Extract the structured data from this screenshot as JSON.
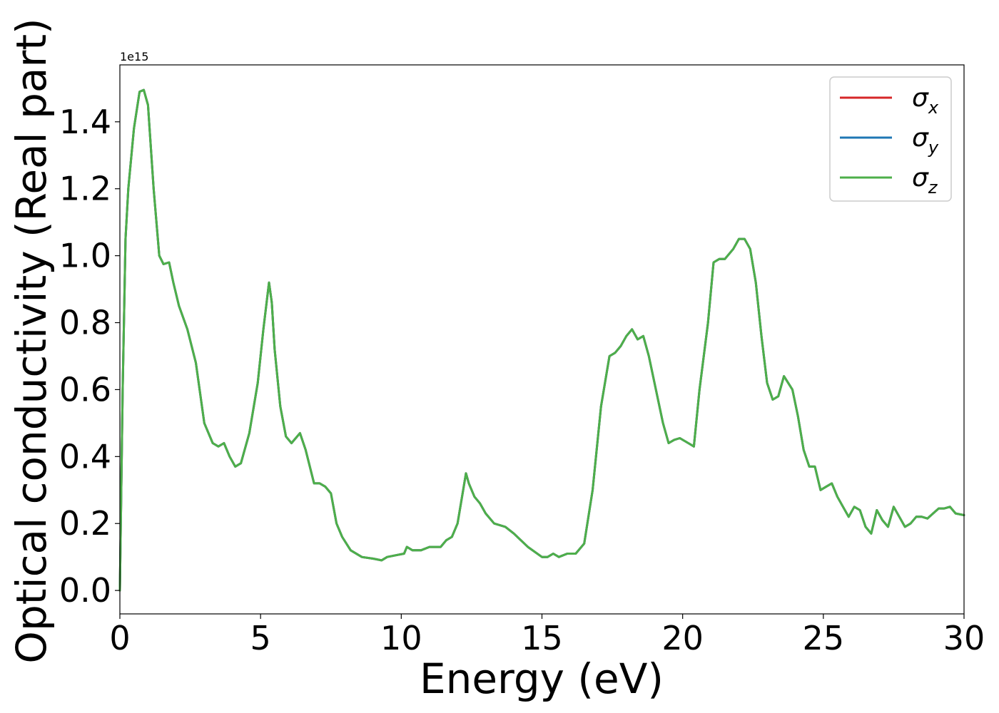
{
  "chart_data": {
    "type": "line",
    "xlabel": "Energy (eV)",
    "ylabel": "Optical conductivity (Real part)",
    "y_offset_text": "1e15",
    "xlim": [
      0,
      30
    ],
    "ylim": [
      -0.07,
      1.57
    ],
    "x_ticks": [
      0,
      5,
      10,
      15,
      20,
      25,
      30
    ],
    "y_ticks": [
      0.0,
      0.2,
      0.4,
      0.6,
      0.8,
      1.0,
      1.2,
      1.4
    ],
    "grid": false,
    "legend_position": "top-right",
    "x": [
      0,
      0.1,
      0.2,
      0.3,
      0.5,
      0.7,
      0.85,
      1.0,
      1.2,
      1.4,
      1.55,
      1.75,
      1.9,
      2.1,
      2.4,
      2.7,
      3.0,
      3.3,
      3.5,
      3.7,
      3.9,
      4.1,
      4.3,
      4.6,
      4.9,
      5.1,
      5.3,
      5.4,
      5.5,
      5.7,
      5.9,
      6.1,
      6.4,
      6.6,
      6.9,
      7.1,
      7.3,
      7.5,
      7.7,
      7.9,
      8.2,
      8.6,
      9.0,
      9.3,
      9.5,
      9.8,
      10.1,
      10.2,
      10.4,
      10.7,
      11.0,
      11.4,
      11.6,
      11.8,
      12.0,
      12.2,
      12.3,
      12.4,
      12.6,
      12.8,
      13.0,
      13.3,
      13.7,
      14.0,
      14.5,
      15.0,
      15.2,
      15.4,
      15.6,
      15.9,
      16.2,
      16.5,
      16.8,
      17.1,
      17.4,
      17.6,
      17.8,
      18.0,
      18.2,
      18.4,
      18.6,
      18.8,
      19.0,
      19.3,
      19.5,
      19.7,
      19.9,
      20.2,
      20.4,
      20.6,
      20.9,
      21.1,
      21.3,
      21.5,
      21.8,
      22.0,
      22.2,
      22.4,
      22.6,
      22.8,
      23.0,
      23.2,
      23.4,
      23.6,
      23.9,
      24.1,
      24.3,
      24.5,
      24.7,
      24.9,
      25.1,
      25.3,
      25.5,
      25.7,
      25.9,
      26.1,
      26.3,
      26.5,
      26.7,
      26.9,
      27.1,
      27.3,
      27.5,
      27.7,
      27.9,
      28.1,
      28.3,
      28.5,
      28.7,
      28.9,
      29.1,
      29.3,
      29.5,
      29.7,
      30.0
    ],
    "series": [
      {
        "name": "σx",
        "name_base": "σ",
        "name_sub": "x",
        "color": "#d62728",
        "y": [
          0.0,
          0.6,
          1.05,
          1.2,
          1.38,
          1.49,
          1.495,
          1.45,
          1.2,
          1.0,
          0.975,
          0.98,
          0.92,
          0.85,
          0.78,
          0.68,
          0.5,
          0.44,
          0.43,
          0.44,
          0.4,
          0.37,
          0.38,
          0.47,
          0.62,
          0.78,
          0.92,
          0.86,
          0.72,
          0.55,
          0.46,
          0.44,
          0.47,
          0.42,
          0.32,
          0.32,
          0.31,
          0.29,
          0.2,
          0.16,
          0.12,
          0.1,
          0.095,
          0.09,
          0.1,
          0.105,
          0.11,
          0.13,
          0.12,
          0.12,
          0.13,
          0.13,
          0.15,
          0.16,
          0.2,
          0.3,
          0.35,
          0.32,
          0.28,
          0.26,
          0.23,
          0.2,
          0.19,
          0.17,
          0.13,
          0.1,
          0.1,
          0.11,
          0.1,
          0.11,
          0.11,
          0.14,
          0.3,
          0.55,
          0.7,
          0.71,
          0.73,
          0.76,
          0.78,
          0.75,
          0.76,
          0.7,
          0.62,
          0.5,
          0.44,
          0.45,
          0.455,
          0.44,
          0.43,
          0.6,
          0.8,
          0.98,
          0.99,
          0.99,
          1.02,
          1.05,
          1.05,
          1.02,
          0.92,
          0.76,
          0.62,
          0.57,
          0.58,
          0.64,
          0.6,
          0.52,
          0.42,
          0.37,
          0.37,
          0.3,
          0.31,
          0.32,
          0.28,
          0.25,
          0.22,
          0.25,
          0.24,
          0.19,
          0.17,
          0.24,
          0.21,
          0.19,
          0.25,
          0.22,
          0.19,
          0.2,
          0.22,
          0.22,
          0.215,
          0.23,
          0.245,
          0.245,
          0.25,
          0.23,
          0.225
        ]
      },
      {
        "name": "σy",
        "name_base": "σ",
        "name_sub": "y",
        "color": "#1f77b4",
        "y": [
          0.0,
          0.6,
          1.05,
          1.2,
          1.38,
          1.49,
          1.495,
          1.45,
          1.2,
          1.0,
          0.975,
          0.98,
          0.92,
          0.85,
          0.78,
          0.68,
          0.5,
          0.44,
          0.43,
          0.44,
          0.4,
          0.37,
          0.38,
          0.47,
          0.62,
          0.78,
          0.92,
          0.86,
          0.72,
          0.55,
          0.46,
          0.44,
          0.47,
          0.42,
          0.32,
          0.32,
          0.31,
          0.29,
          0.2,
          0.16,
          0.12,
          0.1,
          0.095,
          0.09,
          0.1,
          0.105,
          0.11,
          0.13,
          0.12,
          0.12,
          0.13,
          0.13,
          0.15,
          0.16,
          0.2,
          0.3,
          0.35,
          0.32,
          0.28,
          0.26,
          0.23,
          0.2,
          0.19,
          0.17,
          0.13,
          0.1,
          0.1,
          0.11,
          0.1,
          0.11,
          0.11,
          0.14,
          0.3,
          0.55,
          0.7,
          0.71,
          0.73,
          0.76,
          0.78,
          0.75,
          0.76,
          0.7,
          0.62,
          0.5,
          0.44,
          0.45,
          0.455,
          0.44,
          0.43,
          0.6,
          0.8,
          0.98,
          0.99,
          0.99,
          1.02,
          1.05,
          1.05,
          1.02,
          0.92,
          0.76,
          0.62,
          0.57,
          0.58,
          0.64,
          0.6,
          0.52,
          0.42,
          0.37,
          0.37,
          0.3,
          0.31,
          0.32,
          0.28,
          0.25,
          0.22,
          0.25,
          0.24,
          0.19,
          0.17,
          0.24,
          0.21,
          0.19,
          0.25,
          0.22,
          0.19,
          0.2,
          0.22,
          0.22,
          0.215,
          0.23,
          0.245,
          0.245,
          0.25,
          0.23,
          0.225
        ]
      },
      {
        "name": "σz",
        "name_base": "σ",
        "name_sub": "z",
        "color": "#4daf4a",
        "y": [
          0.0,
          0.6,
          1.05,
          1.2,
          1.38,
          1.49,
          1.495,
          1.45,
          1.2,
          1.0,
          0.975,
          0.98,
          0.92,
          0.85,
          0.78,
          0.68,
          0.5,
          0.44,
          0.43,
          0.44,
          0.4,
          0.37,
          0.38,
          0.47,
          0.62,
          0.78,
          0.92,
          0.86,
          0.72,
          0.55,
          0.46,
          0.44,
          0.47,
          0.42,
          0.32,
          0.32,
          0.31,
          0.29,
          0.2,
          0.16,
          0.12,
          0.1,
          0.095,
          0.09,
          0.1,
          0.105,
          0.11,
          0.13,
          0.12,
          0.12,
          0.13,
          0.13,
          0.15,
          0.16,
          0.2,
          0.3,
          0.35,
          0.32,
          0.28,
          0.26,
          0.23,
          0.2,
          0.19,
          0.17,
          0.13,
          0.1,
          0.1,
          0.11,
          0.1,
          0.11,
          0.11,
          0.14,
          0.3,
          0.55,
          0.7,
          0.71,
          0.73,
          0.76,
          0.78,
          0.75,
          0.76,
          0.7,
          0.62,
          0.5,
          0.44,
          0.45,
          0.455,
          0.44,
          0.43,
          0.6,
          0.8,
          0.98,
          0.99,
          0.99,
          1.02,
          1.05,
          1.05,
          1.02,
          0.92,
          0.76,
          0.62,
          0.57,
          0.58,
          0.64,
          0.6,
          0.52,
          0.42,
          0.37,
          0.37,
          0.3,
          0.31,
          0.32,
          0.28,
          0.25,
          0.22,
          0.25,
          0.24,
          0.19,
          0.17,
          0.24,
          0.21,
          0.19,
          0.25,
          0.22,
          0.19,
          0.2,
          0.22,
          0.22,
          0.215,
          0.23,
          0.245,
          0.245,
          0.25,
          0.23,
          0.225
        ]
      }
    ]
  }
}
